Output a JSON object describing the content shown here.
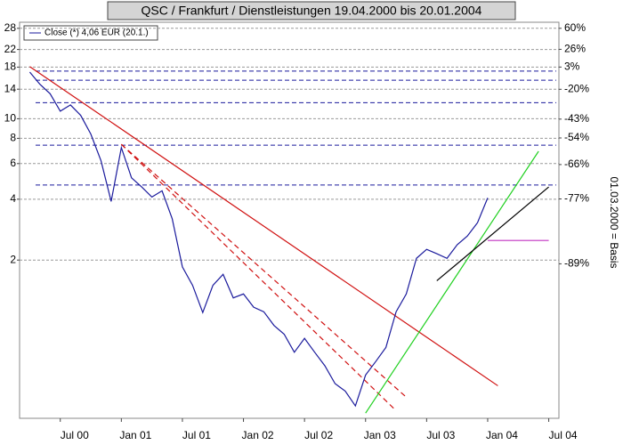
{
  "chart_data": {
    "type": "line",
    "title": "QSC / Frankfurt / Dienstleistungen 19.04.2000 bis 20.01.2004",
    "y2_label": "01.03.2000 = Basis",
    "log_y": true,
    "grid": true,
    "legend": "top-left",
    "x": [
      "2000-04",
      "2000-05",
      "2000-06",
      "2000-07",
      "2000-08",
      "2000-09",
      "2000-10",
      "2000-11",
      "2000-12",
      "2001-01",
      "2001-02",
      "2001-03",
      "2001-04",
      "2001-05",
      "2001-06",
      "2001-07",
      "2001-08",
      "2001-09",
      "2001-10",
      "2001-11",
      "2001-12",
      "2002-01",
      "2002-02",
      "2002-03",
      "2002-04",
      "2002-05",
      "2002-06",
      "2002-07",
      "2002-08",
      "2002-09",
      "2002-10",
      "2002-11",
      "2002-12",
      "2003-01",
      "2003-02",
      "2003-03",
      "2003-04",
      "2003-05",
      "2003-06",
      "2003-07",
      "2003-08",
      "2003-09",
      "2003-10",
      "2003-11",
      "2003-12",
      "2004-01"
    ],
    "series": [
      {
        "name": "Close (*) 4,06 EUR (20.1.)",
        "color": "#1a1a9c",
        "values": [
          17,
          14.8,
          13.3,
          10.9,
          11.7,
          10.4,
          8.4,
          6.2,
          3.9,
          7.2,
          5.1,
          4.6,
          4.1,
          4.4,
          3.2,
          1.85,
          1.5,
          1.1,
          1.5,
          1.7,
          1.3,
          1.36,
          1.17,
          1.11,
          0.95,
          0.86,
          0.7,
          0.82,
          0.7,
          0.6,
          0.49,
          0.45,
          0.38,
          0.54,
          0.63,
          0.74,
          1.11,
          1.36,
          2.04,
          2.26,
          2.15,
          2.04,
          2.38,
          2.63,
          3.06,
          4.06
        ]
      }
    ],
    "trendlines": [
      {
        "color": "#d01010",
        "dashed": false,
        "x": [
          "2000-04",
          "2004-02"
        ],
        "y": [
          18.1,
          0.478
        ]
      },
      {
        "color": "#d01010",
        "dashed": true,
        "x": [
          "2001-01",
          "2003-05"
        ],
        "y": [
          7.47,
          0.42
        ]
      },
      {
        "color": "#d01010",
        "dashed": true,
        "x": [
          "2001-01",
          "2003-04"
        ],
        "y": [
          7.47,
          0.36
        ]
      },
      {
        "color": "#20d020",
        "dashed": false,
        "x": [
          "2003-01",
          "2004-06"
        ],
        "y": [
          0.35,
          6.9
        ]
      },
      {
        "color": "#000000",
        "dashed": false,
        "x": [
          "2003-08",
          "2004-07"
        ],
        "y": [
          1.58,
          4.6
        ]
      },
      {
        "color": "#c030c0",
        "dashed": false,
        "x": [
          "2004-01",
          "2004-07"
        ],
        "y": [
          2.5,
          2.5
        ]
      }
    ],
    "levels": [
      17.2,
      15.5,
      12,
      7.4,
      4.7
    ],
    "level_color": "#1a1a9c",
    "xlim": [
      "2000-03",
      "2004-08"
    ],
    "xticks": [
      {
        "value": "2000-07",
        "label": "Jul 00"
      },
      {
        "value": "2001-01",
        "label": "Jan 01"
      },
      {
        "value": "2001-07",
        "label": "Jul 01"
      },
      {
        "value": "2002-01",
        "label": "Jan 02"
      },
      {
        "value": "2002-07",
        "label": "Jul 02"
      },
      {
        "value": "2003-01",
        "label": "Jan 03"
      },
      {
        "value": "2003-07",
        "label": "Jul 03"
      },
      {
        "value": "2004-01",
        "label": "Jan 04"
      },
      {
        "value": "2004-07",
        "label": "Jul 04"
      }
    ],
    "ylim": [
      0.33,
      30
    ],
    "yticks": [
      28,
      22,
      18,
      14,
      10,
      8,
      6,
      4,
      2
    ],
    "y2lim": [
      -98.1,
      71.4
    ],
    "y2ticks": [
      {
        "value": 60,
        "label": "60%"
      },
      {
        "value": 26,
        "label": "26%"
      },
      {
        "value": 3,
        "label": "3%"
      },
      {
        "value": -20,
        "label": "-20%"
      },
      {
        "value": -43,
        "label": "-43%"
      },
      {
        "value": -54,
        "label": "-54%"
      },
      {
        "value": -66,
        "label": "-66%"
      },
      {
        "value": -77,
        "label": "-77%"
      },
      {
        "value": -89,
        "label": "-89%"
      }
    ]
  }
}
